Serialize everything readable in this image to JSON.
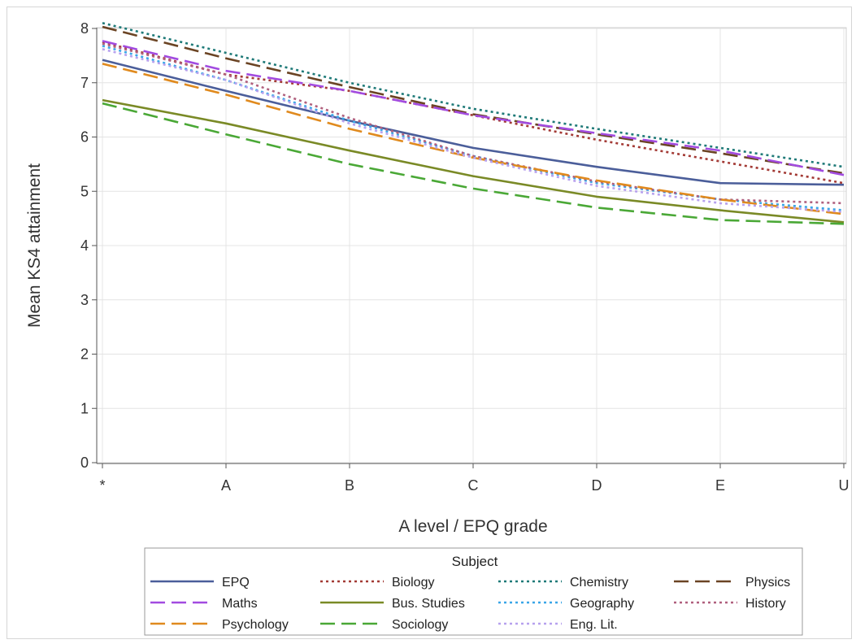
{
  "chart_data": {
    "type": "line",
    "title": "",
    "xlabel": "A level / EPQ grade",
    "ylabel": "Mean KS4 attainment",
    "categories": [
      "*",
      "A",
      "B",
      "C",
      "D",
      "E",
      "U"
    ],
    "ylim": [
      0,
      8
    ],
    "yticks": [
      0,
      1,
      2,
      3,
      4,
      5,
      6,
      7,
      8
    ],
    "grid": true,
    "legend": {
      "title": "Subject",
      "placement": "bottom"
    },
    "series": [
      {
        "name": "EPQ",
        "color": "#4b5e9a",
        "style": "solid",
        "values": [
          7.42,
          6.85,
          6.3,
          5.8,
          5.45,
          5.15,
          5.12
        ]
      },
      {
        "name": "Biology",
        "color": "#a33a35",
        "style": "dotted",
        "values": [
          7.75,
          7.15,
          6.85,
          6.4,
          5.95,
          5.55,
          5.15
        ]
      },
      {
        "name": "Chemistry",
        "color": "#1f7a78",
        "style": "dotted",
        "values": [
          8.1,
          7.55,
          7.0,
          6.52,
          6.15,
          5.8,
          5.45
        ]
      },
      {
        "name": "Physics",
        "color": "#6b4424",
        "style": "dashed",
        "values": [
          8.03,
          7.45,
          6.92,
          6.42,
          6.05,
          5.7,
          5.33
        ]
      },
      {
        "name": "Maths",
        "color": "#a24be0",
        "style": "dashed",
        "values": [
          7.77,
          7.22,
          6.85,
          6.4,
          6.07,
          5.75,
          5.3
        ]
      },
      {
        "name": "Bus. Studies",
        "color": "#7a8a26",
        "style": "solid",
        "values": [
          6.68,
          6.25,
          5.75,
          5.28,
          4.9,
          4.65,
          4.43
        ]
      },
      {
        "name": "Geography",
        "color": "#3aa6e8",
        "style": "dotted",
        "values": [
          7.68,
          7.05,
          6.3,
          5.65,
          5.15,
          4.85,
          4.65
        ]
      },
      {
        "name": "History",
        "color": "#b0607e",
        "style": "dotted",
        "values": [
          7.72,
          7.15,
          6.35,
          5.65,
          5.18,
          4.85,
          4.78
        ]
      },
      {
        "name": "Psychology",
        "color": "#e08a1e",
        "style": "dashed",
        "values": [
          7.35,
          6.78,
          6.15,
          5.62,
          5.2,
          4.85,
          4.58
        ]
      },
      {
        "name": "Sociology",
        "color": "#4aa836",
        "style": "dashed",
        "values": [
          6.62,
          6.05,
          5.5,
          5.05,
          4.7,
          4.47,
          4.4
        ]
      },
      {
        "name": "Eng. Lit.",
        "color": "#b7a1ee",
        "style": "dotted",
        "values": [
          7.62,
          7.05,
          6.25,
          5.62,
          5.1,
          4.78,
          4.62
        ]
      }
    ]
  }
}
